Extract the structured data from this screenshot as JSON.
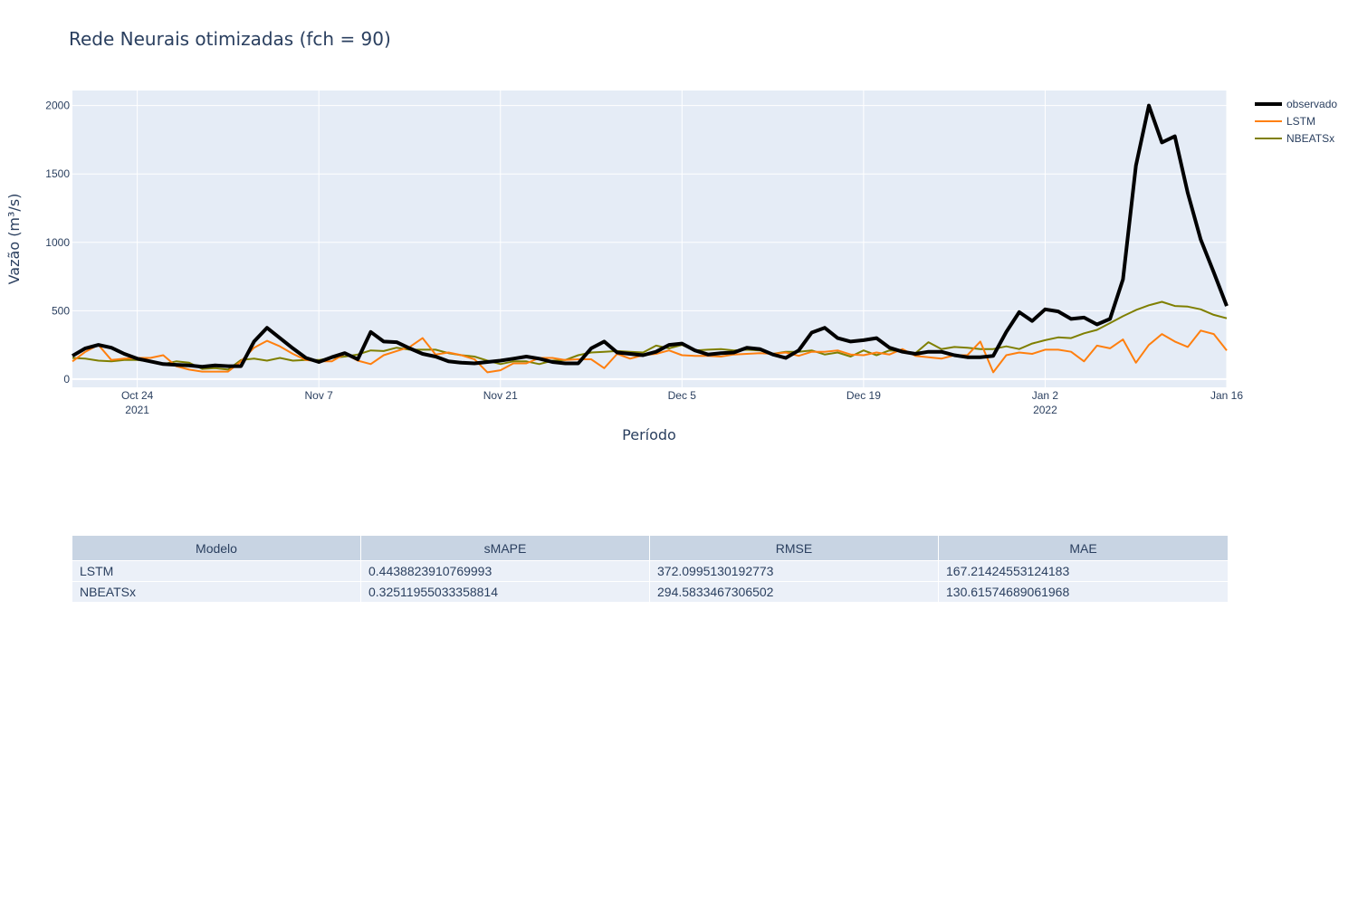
{
  "chart_data": {
    "type": "line",
    "title": "Rede Neurais otimizadas (fch = 90)",
    "xlabel": "Período",
    "ylabel": "Vazão (m³/s)",
    "x_start": "2021-10-19",
    "x_end": "2022-01-16",
    "xlim": [
      "2021-10-19",
      "2022-01-16"
    ],
    "ylim": [
      -60,
      2110
    ],
    "grid": true,
    "legend_position": "top-right",
    "x_ticks": [
      {
        "date": "2021-10-24",
        "label": "Oct 24",
        "sublabel": "2021"
      },
      {
        "date": "2021-11-07",
        "label": "Nov 7",
        "sublabel": ""
      },
      {
        "date": "2021-11-21",
        "label": "Nov 21",
        "sublabel": ""
      },
      {
        "date": "2021-12-05",
        "label": "Dec 5",
        "sublabel": ""
      },
      {
        "date": "2021-12-19",
        "label": "Dec 19",
        "sublabel": ""
      },
      {
        "date": "2022-01-02",
        "label": "Jan 2",
        "sublabel": "2022"
      },
      {
        "date": "2022-01-16",
        "label": "Jan 16",
        "sublabel": ""
      }
    ],
    "y_ticks": [
      {
        "value": 0,
        "label": "0"
      },
      {
        "value": 500,
        "label": "500"
      },
      {
        "value": 1000,
        "label": "1000"
      },
      {
        "value": 1500,
        "label": "1500"
      },
      {
        "value": 2000,
        "label": "2000"
      }
    ],
    "series": [
      {
        "name": "observado",
        "color": "#000000",
        "values": [
          170,
          225,
          250,
          230,
          185,
          150,
          130,
          110,
          105,
          100,
          90,
          100,
          95,
          95,
          275,
          375,
          300,
          225,
          155,
          125,
          160,
          190,
          145,
          345,
          275,
          270,
          225,
          185,
          165,
          130,
          120,
          115,
          125,
          135,
          150,
          165,
          150,
          125,
          115,
          115,
          225,
          275,
          195,
          185,
          175,
          200,
          250,
          260,
          210,
          180,
          190,
          195,
          230,
          220,
          180,
          155,
          210,
          340,
          375,
          300,
          275,
          285,
          300,
          230,
          200,
          185,
          200,
          200,
          175,
          160,
          160,
          170,
          345,
          490,
          425,
          510,
          495,
          440,
          450,
          400,
          440,
          730,
          1560,
          2000,
          1730,
          1775,
          1360,
          1020,
          780,
          535
        ]
      },
      {
        "name": "LSTM",
        "color": "#ff7f0e",
        "values": [
          130,
          200,
          250,
          140,
          150,
          155,
          155,
          175,
          95,
          70,
          55,
          55,
          55,
          130,
          230,
          280,
          240,
          185,
          140,
          130,
          130,
          185,
          135,
          110,
          175,
          205,
          235,
          300,
          180,
          195,
          175,
          145,
          50,
          65,
          115,
          115,
          155,
          155,
          140,
          145,
          145,
          80,
          185,
          150,
          175,
          185,
          210,
          175,
          170,
          170,
          165,
          180,
          185,
          190,
          185,
          195,
          170,
          200,
          200,
          210,
          180,
          175,
          195,
          180,
          220,
          170,
          160,
          150,
          175,
          175,
          275,
          50,
          175,
          195,
          185,
          215,
          215,
          200,
          130,
          245,
          225,
          290,
          120,
          250,
          330,
          275,
          235,
          355,
          330,
          210
        ]
      },
      {
        "name": "NBEATSx",
        "color": "#7f7f00",
        "values": [
          155,
          150,
          135,
          130,
          140,
          140,
          130,
          110,
          130,
          120,
          75,
          80,
          70,
          140,
          150,
          135,
          155,
          135,
          140,
          140,
          155,
          165,
          180,
          210,
          205,
          230,
          215,
          215,
          215,
          190,
          175,
          165,
          135,
          110,
          130,
          130,
          110,
          135,
          140,
          175,
          195,
          200,
          205,
          200,
          195,
          245,
          225,
          250,
          210,
          215,
          220,
          210,
          215,
          210,
          185,
          200,
          200,
          210,
          180,
          195,
          165,
          210,
          175,
          210,
          205,
          190,
          270,
          220,
          235,
          230,
          220,
          220,
          240,
          220,
          260,
          285,
          305,
          300,
          335,
          360,
          410,
          460,
          505,
          540,
          565,
          535,
          530,
          510,
          470,
          445
        ]
      }
    ]
  },
  "table": {
    "headers": [
      "Modelo",
      "sMAPE",
      "RMSE",
      "MAE"
    ],
    "rows": [
      [
        "LSTM",
        "0.4438823910769993",
        "372.0995130192773",
        "167.21424553124183"
      ],
      [
        "NBEATSx",
        "0.32511955033358814",
        "294.5833467306502",
        "130.61574689061968"
      ]
    ]
  }
}
